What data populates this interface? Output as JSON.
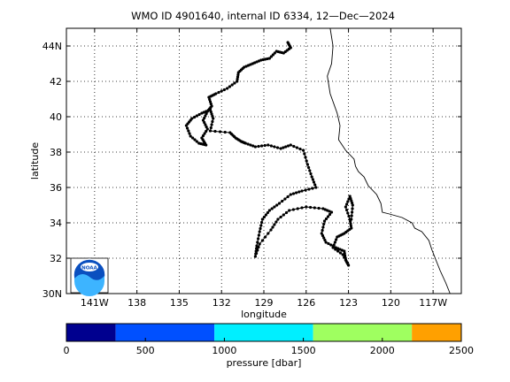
{
  "title": "WMO ID 4901640, internal ID 6334, 12—Dec—2024",
  "map": {
    "xlabel": "longitude",
    "ylabel": "latitude",
    "x_range": [
      -143,
      -115
    ],
    "y_range": [
      30,
      45
    ],
    "x_ticks": [
      {
        "value": -141,
        "label": "141W"
      },
      {
        "value": -138,
        "label": "138"
      },
      {
        "value": -135,
        "label": "135"
      },
      {
        "value": -132,
        "label": "132"
      },
      {
        "value": -129,
        "label": "129"
      },
      {
        "value": -126,
        "label": "126"
      },
      {
        "value": -123,
        "label": "123"
      },
      {
        "value": -120,
        "label": "120"
      },
      {
        "value": -117,
        "label": "117W"
      }
    ],
    "y_ticks": [
      {
        "value": 30,
        "label": "30N"
      },
      {
        "value": 32,
        "label": "32"
      },
      {
        "value": 34,
        "label": "34"
      },
      {
        "value": 36,
        "label": "36"
      },
      {
        "value": 38,
        "label": "38"
      },
      {
        "value": 40,
        "label": "40"
      },
      {
        "value": 42,
        "label": "42"
      },
      {
        "value": 44,
        "label": "44N"
      }
    ],
    "grid": "dotted",
    "logo": "noaa-logo",
    "track": [
      [
        -127.3,
        44.2
      ],
      [
        -127.1,
        43.9
      ],
      [
        -127.6,
        43.6
      ],
      [
        -128.1,
        43.7
      ],
      [
        -128.6,
        43.3
      ],
      [
        -129.2,
        43.2
      ],
      [
        -129.8,
        43.0
      ],
      [
        -130.4,
        42.8
      ],
      [
        -130.8,
        42.5
      ],
      [
        -130.9,
        42.0
      ],
      [
        -131.6,
        41.6
      ],
      [
        -132.4,
        41.3
      ],
      [
        -132.9,
        41.1
      ],
      [
        -132.7,
        40.6
      ],
      [
        -133.0,
        40.3
      ],
      [
        -133.3,
        39.8
      ],
      [
        -133.0,
        39.3
      ],
      [
        -133.4,
        38.8
      ],
      [
        -133.1,
        38.4
      ],
      [
        -133.6,
        38.5
      ],
      [
        -134.2,
        38.9
      ],
      [
        -134.5,
        39.5
      ],
      [
        -134.1,
        39.9
      ],
      [
        -133.4,
        40.2
      ],
      [
        -132.8,
        40.4
      ],
      [
        -132.6,
        39.9
      ],
      [
        -132.8,
        39.2
      ],
      [
        -131.4,
        39.1
      ],
      [
        -131.0,
        38.8
      ],
      [
        -130.6,
        38.6
      ],
      [
        -130.3,
        38.5
      ],
      [
        -129.6,
        38.3
      ],
      [
        -128.7,
        38.4
      ],
      [
        -127.8,
        38.2
      ],
      [
        -127.1,
        38.4
      ],
      [
        -126.2,
        38.1
      ],
      [
        -125.9,
        37.3
      ],
      [
        -125.6,
        36.6
      ],
      [
        -125.3,
        36.0
      ],
      [
        -126.3,
        35.8
      ],
      [
        -127.1,
        35.6
      ],
      [
        -127.9,
        35.1
      ],
      [
        -128.6,
        34.7
      ],
      [
        -129.1,
        34.2
      ],
      [
        -129.3,
        33.5
      ],
      [
        -129.5,
        32.7
      ],
      [
        -129.6,
        32.1
      ],
      [
        -129.3,
        32.8
      ],
      [
        -128.5,
        33.6
      ],
      [
        -128.0,
        34.2
      ],
      [
        -127.2,
        34.7
      ],
      [
        -126.0,
        34.9
      ],
      [
        -124.8,
        34.8
      ],
      [
        -124.2,
        34.6
      ],
      [
        -124.7,
        34.1
      ],
      [
        -124.9,
        33.4
      ],
      [
        -124.6,
        32.9
      ],
      [
        -123.9,
        32.6
      ],
      [
        -123.3,
        32.4
      ],
      [
        -123.2,
        31.9
      ],
      [
        -123.0,
        31.6
      ],
      [
        -123.4,
        32.2
      ],
      [
        -124.1,
        32.6
      ],
      [
        -123.8,
        33.2
      ],
      [
        -123.3,
        33.4
      ],
      [
        -122.8,
        33.7
      ],
      [
        -122.9,
        34.2
      ],
      [
        -123.2,
        34.9
      ],
      [
        -122.9,
        35.5
      ],
      [
        -122.7,
        35.0
      ],
      [
        -122.8,
        34.2
      ]
    ],
    "coast": [
      [
        -124.3,
        45.0
      ],
      [
        -124.1,
        44.0
      ],
      [
        -124.2,
        43.0
      ],
      [
        -124.5,
        42.3
      ],
      [
        -124.3,
        41.3
      ],
      [
        -123.8,
        40.2
      ],
      [
        -123.6,
        39.5
      ],
      [
        -123.7,
        38.7
      ],
      [
        -123.2,
        38.1
      ],
      [
        -122.6,
        37.6
      ],
      [
        -122.5,
        37.2
      ],
      [
        -122.3,
        36.9
      ],
      [
        -121.9,
        36.6
      ],
      [
        -121.6,
        36.1
      ],
      [
        -121.0,
        35.6
      ],
      [
        -120.7,
        35.1
      ],
      [
        -120.6,
        34.6
      ],
      [
        -120.1,
        34.5
      ],
      [
        -119.2,
        34.3
      ],
      [
        -118.5,
        34.0
      ],
      [
        -118.3,
        33.7
      ],
      [
        -117.8,
        33.5
      ],
      [
        -117.3,
        33.0
      ],
      [
        -117.1,
        32.5
      ],
      [
        -116.8,
        31.9
      ],
      [
        -116.5,
        31.3
      ],
      [
        -116.1,
        30.6
      ],
      [
        -115.8,
        30.0
      ]
    ]
  },
  "colorbar": {
    "label": "pressure [dbar]",
    "range": [
      0,
      2500
    ],
    "tick_labels": [
      {
        "value": 0,
        "label": "0"
      },
      {
        "value": 500,
        "label": "500"
      },
      {
        "value": 1000,
        "label": "1000"
      },
      {
        "value": 1500,
        "label": "1500"
      },
      {
        "value": 2000,
        "label": "2000"
      },
      {
        "value": 2500,
        "label": "2500"
      }
    ],
    "segments": [
      {
        "from": 0,
        "to": 312,
        "color": "#00008f"
      },
      {
        "from": 312,
        "to": 937,
        "color": "#0050ff"
      },
      {
        "from": 937,
        "to": 1562,
        "color": "#00efff"
      },
      {
        "from": 1562,
        "to": 2187,
        "color": "#9fff60"
      },
      {
        "from": 2187,
        "to": 2500,
        "color": "#ffa000"
      }
    ]
  }
}
